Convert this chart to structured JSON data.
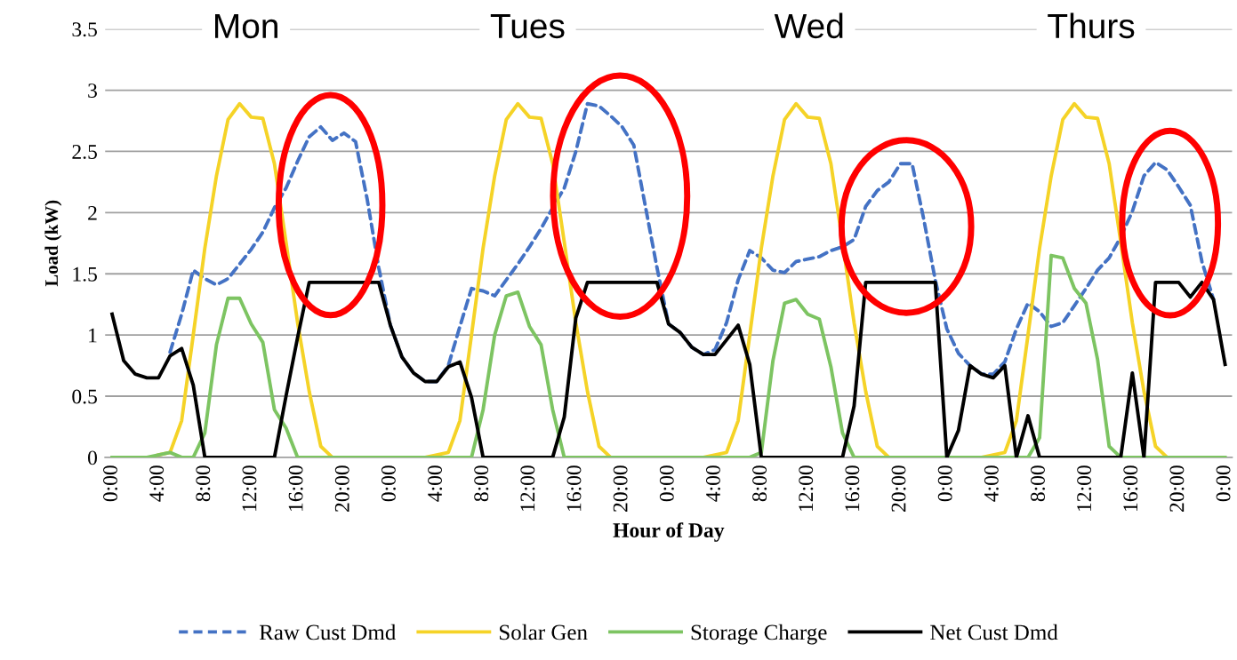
{
  "chart_data": {
    "type": "line",
    "xlabel": "Hour of Day",
    "ylabel": "Load (kW)",
    "annotations": [
      "Mon",
      "Tues",
      "Wed",
      "Thurs"
    ],
    "categories": [
      "0:00",
      null,
      null,
      null,
      "4:00",
      null,
      null,
      null,
      "8:00",
      null,
      null,
      null,
      "12:00",
      null,
      null,
      null,
      "16:00",
      null,
      null,
      null,
      "20:00",
      null,
      null,
      null,
      "0:00",
      null,
      null,
      null,
      "4:00",
      null,
      null,
      null,
      "8:00",
      null,
      null,
      null,
      "12:00",
      null,
      null,
      null,
      "16:00",
      null,
      null,
      null,
      "20:00",
      null,
      null,
      null,
      "0:00",
      null,
      null,
      null,
      "4:00",
      null,
      null,
      null,
      "8:00",
      null,
      null,
      null,
      "12:00",
      null,
      null,
      null,
      "16:00",
      null,
      null,
      null,
      "20:00",
      null,
      null,
      null,
      "0:00",
      null,
      null,
      null,
      "4:00",
      null,
      null,
      null,
      "8:00",
      null,
      null,
      null,
      "12:00",
      null,
      null,
      null,
      "16:00",
      null,
      null,
      null,
      "20:00",
      null,
      null,
      null,
      "0:00"
    ],
    "series": [
      {
        "name": "Raw Cust Dmd",
        "color": "#4472c4",
        "line_style": "dashed",
        "values": [
          null,
          null,
          null,
          null,
          null,
          0.86,
          1.17,
          1.53,
          1.46,
          1.41,
          1.46,
          1.58,
          1.7,
          1.84,
          2.04,
          2.2,
          2.42,
          2.62,
          2.7,
          2.59,
          2.65,
          2.58,
          2.11,
          1.55,
          1.08,
          0.82,
          0.69,
          0.62,
          0.62,
          0.75,
          1.07,
          1.38,
          1.36,
          1.32,
          1.45,
          1.58,
          1.72,
          1.87,
          2.04,
          2.2,
          2.5,
          2.89,
          2.87,
          2.79,
          2.7,
          2.55,
          2.05,
          1.55,
          1.09,
          1.02,
          0.9,
          0.84,
          0.88,
          1.1,
          1.45,
          1.69,
          1.63,
          1.53,
          1.51,
          1.6,
          1.62,
          1.64,
          1.69,
          1.72,
          1.78,
          2.05,
          2.18,
          2.25,
          2.4,
          2.4,
          1.95,
          1.45,
          1.05,
          0.85,
          0.75,
          0.68,
          0.68,
          0.78,
          1.05,
          1.26,
          1.19,
          1.07,
          1.1,
          1.24,
          1.38,
          1.53,
          1.63,
          1.8,
          2.01,
          2.3,
          2.41,
          2.35,
          2.21,
          2.06,
          1.6,
          1.29,
          null
        ]
      },
      {
        "name": "Solar Gen",
        "color": "#f5d327",
        "line_style": "solid",
        "values": [
          null,
          null,
          null,
          null,
          0.02,
          0.04,
          0.3,
          1.0,
          1.71,
          2.3,
          2.76,
          2.89,
          2.78,
          2.77,
          2.4,
          1.76,
          1.1,
          0.54,
          0.09,
          0,
          0,
          0,
          0,
          0,
          0,
          0,
          0,
          0,
          0.02,
          0.04,
          0.3,
          1.0,
          1.71,
          2.3,
          2.76,
          2.89,
          2.78,
          2.77,
          2.4,
          1.76,
          1.1,
          0.54,
          0.09,
          0,
          0,
          0,
          0,
          0,
          0,
          0,
          0,
          0,
          0.02,
          0.04,
          0.3,
          1.0,
          1.71,
          2.3,
          2.76,
          2.89,
          2.78,
          2.77,
          2.4,
          1.76,
          1.1,
          0.54,
          0.09,
          0,
          0,
          0,
          0,
          0,
          0,
          0,
          0,
          0,
          0.02,
          0.04,
          0.3,
          1.0,
          1.71,
          2.3,
          2.76,
          2.89,
          2.78,
          2.77,
          2.4,
          1.76,
          1.1,
          0.54,
          0.09,
          0,
          0,
          null,
          null,
          null,
          null
        ]
      },
      {
        "name": "Storage Charge",
        "color": "#7dc462",
        "line_style": "solid",
        "values": [
          0,
          0,
          0,
          0,
          0.02,
          0.04,
          0,
          0,
          0.2,
          0.92,
          1.3,
          1.3,
          1.09,
          0.94,
          0.39,
          0.24,
          0,
          0,
          0,
          0,
          0,
          0,
          0,
          0,
          0,
          0,
          0,
          0,
          0,
          0,
          0,
          0,
          0.39,
          1.0,
          1.32,
          1.35,
          1.07,
          0.92,
          0.39,
          0,
          0,
          0,
          0,
          0,
          0,
          0,
          0,
          0,
          0,
          0,
          0,
          0,
          0,
          0,
          0,
          0,
          0.04,
          0.79,
          1.26,
          1.29,
          1.17,
          1.13,
          0.74,
          0.2,
          0,
          0,
          0,
          0,
          0,
          0,
          0,
          0,
          0,
          0,
          0,
          0,
          0,
          0,
          0,
          0,
          0.16,
          1.65,
          1.63,
          1.38,
          1.26,
          0.8,
          0.09,
          0,
          0,
          0,
          0,
          0,
          0,
          0,
          0,
          0,
          0
        ]
      },
      {
        "name": "Net Cust Dmd",
        "color": "#000000",
        "line_style": "solid",
        "values": [
          1.17,
          0.79,
          0.68,
          0.65,
          0.65,
          0.83,
          0.89,
          0.59,
          0,
          0,
          0,
          0,
          0,
          0,
          0,
          0.5,
          0.98,
          1.43,
          1.43,
          1.43,
          1.43,
          1.43,
          1.43,
          1.43,
          1.08,
          0.82,
          0.69,
          0.62,
          0.62,
          0.74,
          0.78,
          0.49,
          0,
          0,
          0,
          0,
          0,
          0,
          0,
          0.33,
          1.14,
          1.43,
          1.43,
          1.43,
          1.43,
          1.43,
          1.43,
          1.43,
          1.09,
          1.02,
          0.9,
          0.84,
          0.84,
          0.96,
          1.08,
          0.76,
          0,
          0,
          0,
          0,
          0,
          0,
          0,
          0,
          0.42,
          1.43,
          1.43,
          1.43,
          1.43,
          1.43,
          1.43,
          1.43,
          0,
          0.22,
          0.75,
          0.68,
          0.65,
          0.75,
          0,
          0.34,
          0,
          0,
          0,
          0,
          0,
          0,
          0,
          0,
          0.69,
          0,
          1.43,
          1.43,
          1.43,
          1.31,
          1.43,
          1.29,
          0.76
        ]
      }
    ],
    "ylim": [
      0,
      3.5
    ],
    "yticks": [
      0,
      0.5,
      1,
      1.5,
      2,
      2.5,
      3,
      3.5
    ],
    "grid": "y",
    "legend": "bottom"
  }
}
